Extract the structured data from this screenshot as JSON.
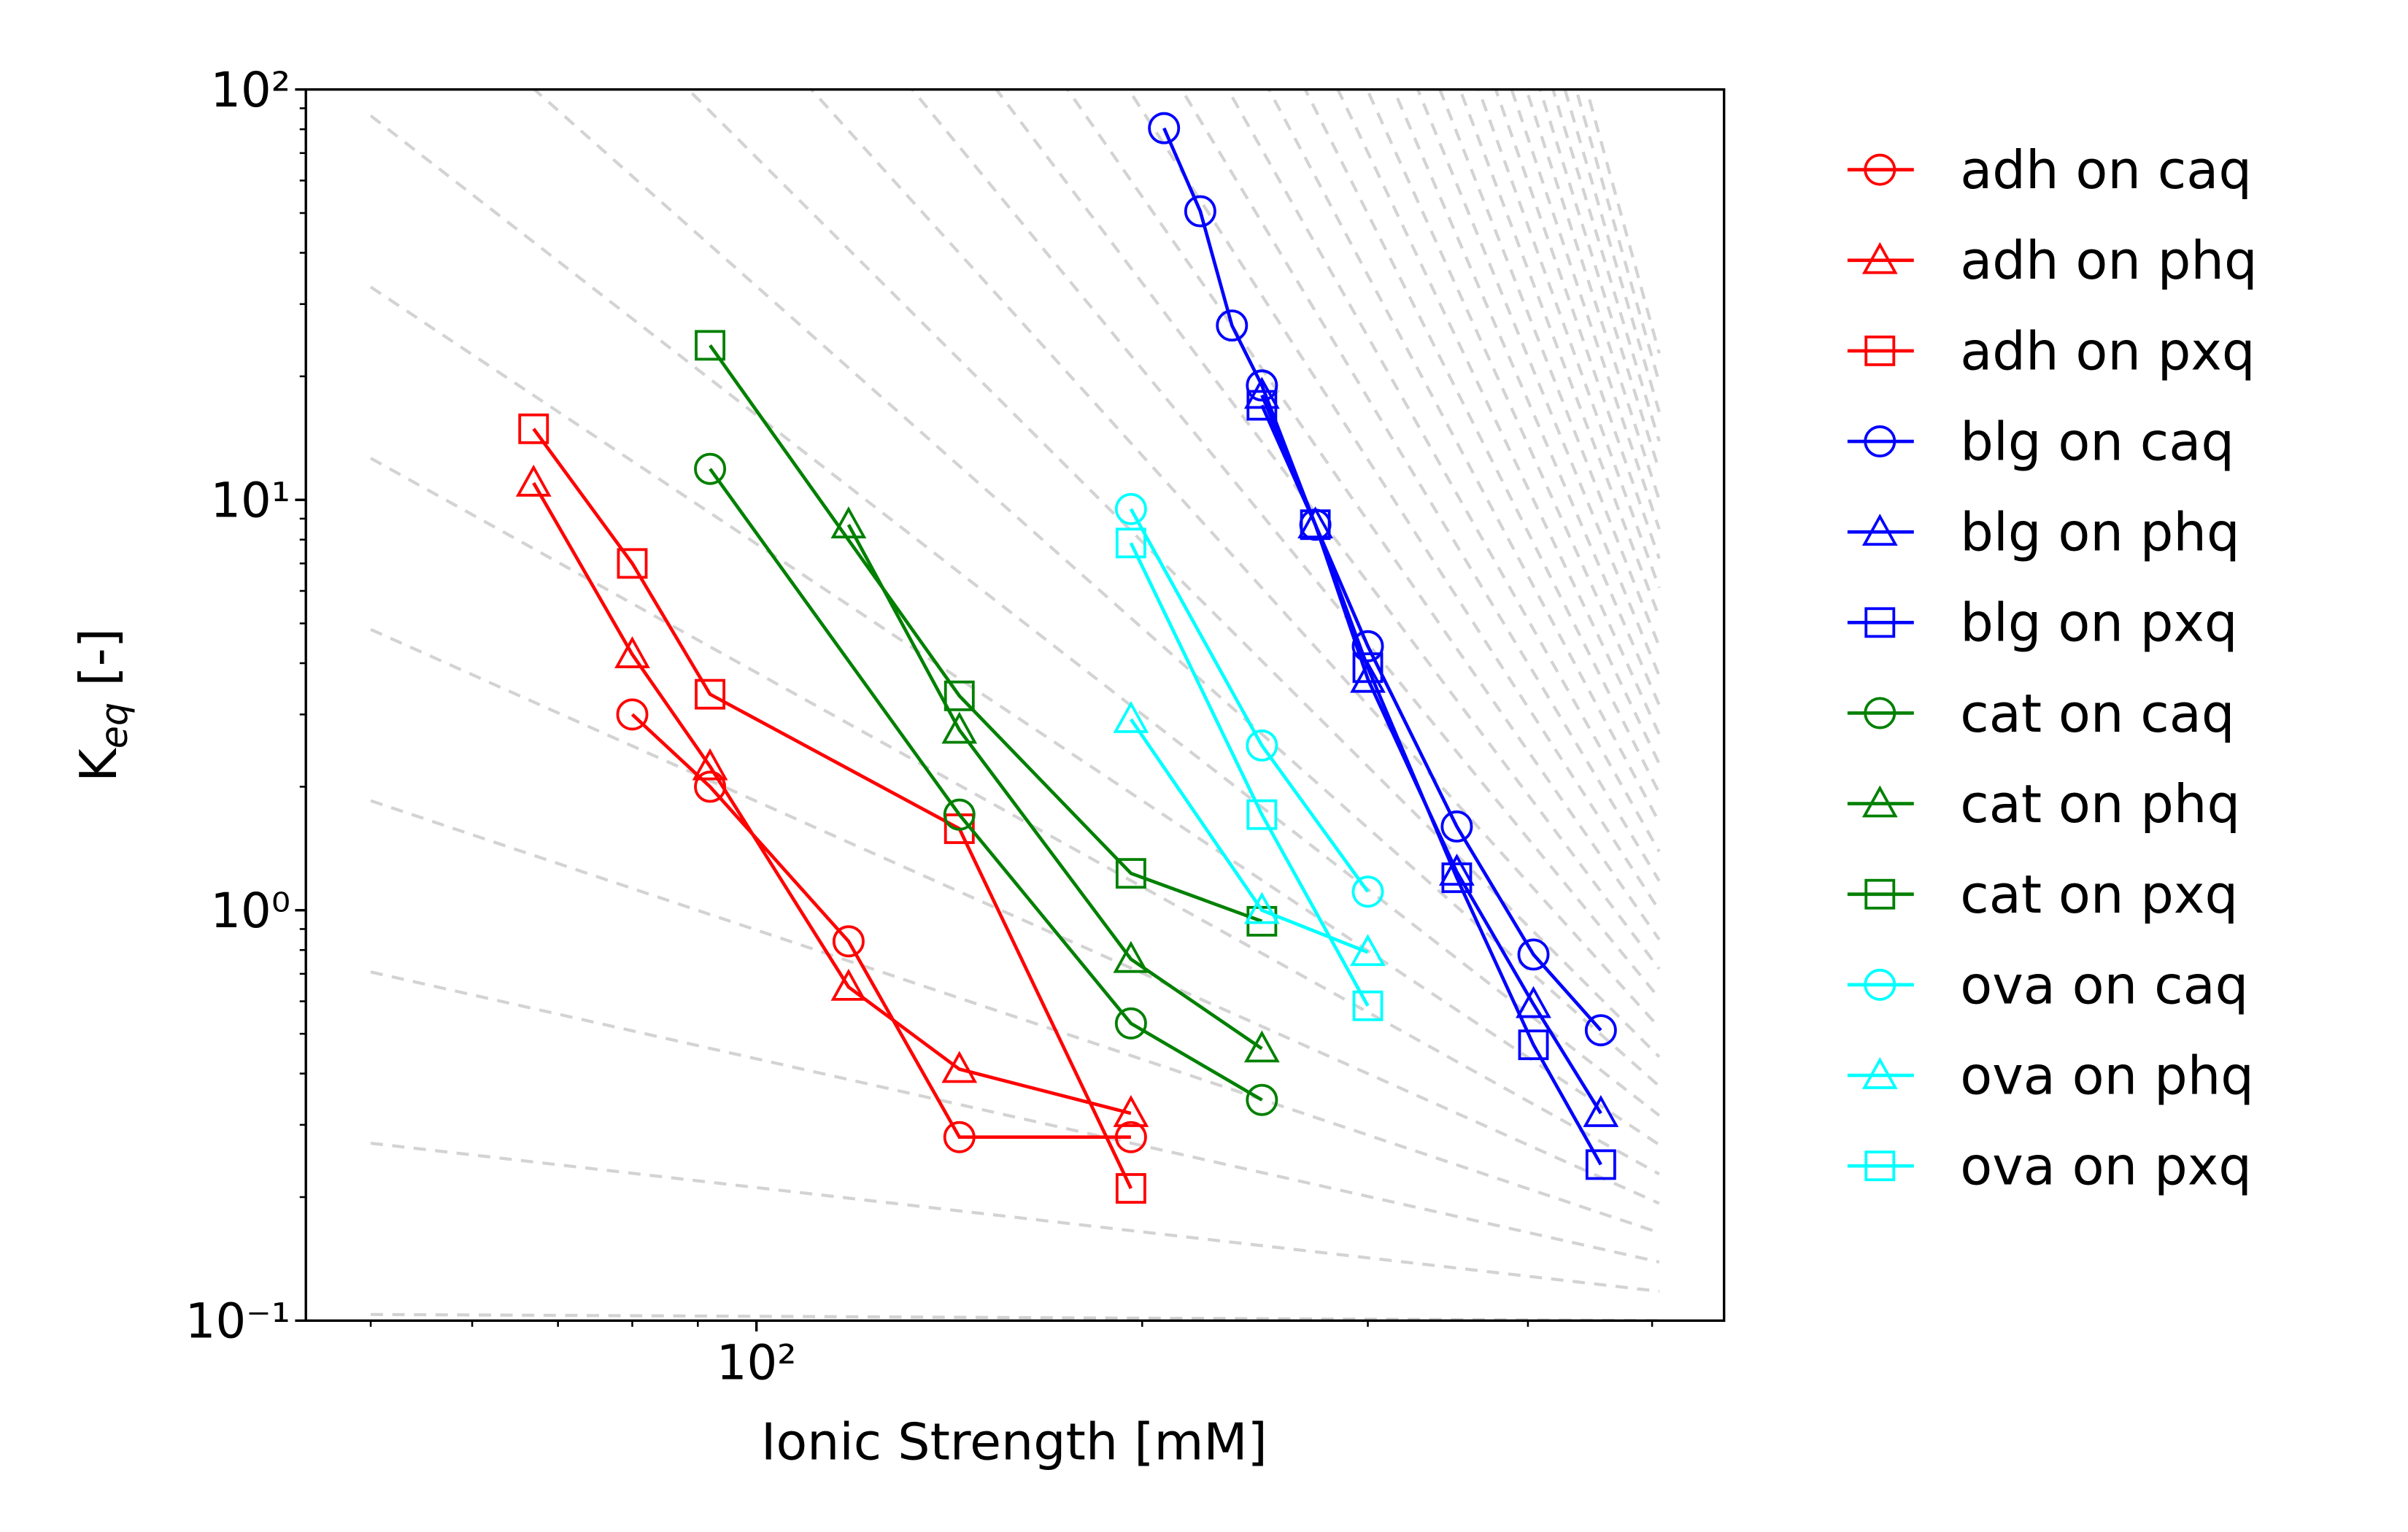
{
  "chart_data": {
    "type": "line",
    "xscale": "log",
    "yscale": "log",
    "xlabel": "Ionic Strength [mM]",
    "ylabel": [
      "K",
      "eq",
      " [-]"
    ],
    "xlim": [
      44.5,
      569
    ],
    "ylim": [
      0.1,
      100
    ],
    "xticks": [
      {
        "value": 100,
        "label": "10²"
      }
    ],
    "xminorticks": [
      50,
      60,
      70,
      80,
      90,
      200,
      300,
      400,
      500
    ],
    "yticks": [
      {
        "value": 0.1,
        "label": "10⁻¹"
      },
      {
        "value": 1,
        "label": "10⁰"
      },
      {
        "value": 10,
        "label": "10¹"
      },
      {
        "value": 100,
        "label": "10²"
      }
    ],
    "yminorticks": [
      0.2,
      0.3,
      0.4,
      0.5,
      0.6,
      0.7,
      0.8,
      0.9,
      2,
      3,
      4,
      5,
      6,
      7,
      8,
      9,
      20,
      30,
      40,
      50,
      60,
      70,
      80,
      90
    ],
    "legend": "outside-right",
    "series": [
      {
        "name": "adh on caq",
        "color": "#ff0000",
        "marker": "circle",
        "x": [
          80,
          92,
          118,
          144,
          196
        ],
        "values": [
          3.0,
          2.0,
          0.84,
          0.28,
          0.28
        ]
      },
      {
        "name": "adh on phq",
        "color": "#ff0000",
        "marker": "triangle",
        "x": [
          67,
          80,
          92,
          118,
          144,
          196
        ],
        "values": [
          11,
          4.2,
          2.24,
          0.65,
          0.41,
          0.32
        ]
      },
      {
        "name": "adh on pxq",
        "color": "#ff0000",
        "marker": "square",
        "x": [
          67,
          80,
          92,
          144,
          196
        ],
        "values": [
          14.9,
          7.0,
          3.36,
          1.58,
          0.21
        ]
      },
      {
        "name": "blg on caq",
        "color": "#0000ff",
        "marker": "circle",
        "x": [
          208,
          222,
          235,
          248,
          273,
          300,
          352,
          404,
          456
        ],
        "values": [
          80.5,
          50.5,
          26.6,
          19,
          8.7,
          4.4,
          1.6,
          0.78,
          0.51
        ]
      },
      {
        "name": "blg on phq",
        "color": "#0000ff",
        "marker": "triangle",
        "x": [
          248,
          273,
          300,
          352,
          404,
          456
        ],
        "values": [
          18,
          8.7,
          3.66,
          1.24,
          0.59,
          0.32
        ]
      },
      {
        "name": "blg on pxq",
        "color": "#0000ff",
        "marker": "square",
        "x": [
          248,
          273,
          300,
          352,
          404,
          456
        ],
        "values": [
          17,
          8.7,
          3.9,
          1.2,
          0.47,
          0.24
        ]
      },
      {
        "name": "cat on caq",
        "color": "#008000",
        "marker": "circle",
        "x": [
          92,
          144,
          196,
          248
        ],
        "values": [
          11.9,
          1.71,
          0.53,
          0.345
        ]
      },
      {
        "name": "cat on phq",
        "color": "#008000",
        "marker": "triangle",
        "x": [
          118,
          144,
          196,
          248
        ],
        "values": [
          8.7,
          2.75,
          0.76,
          0.46
        ]
      },
      {
        "name": "cat on pxq",
        "color": "#008000",
        "marker": "square",
        "x": [
          92,
          144,
          196,
          248
        ],
        "values": [
          23.8,
          3.33,
          1.23,
          0.94
        ]
      },
      {
        "name": "ova on caq",
        "color": "#00ffff",
        "marker": "circle",
        "x": [
          196,
          248,
          300
        ],
        "values": [
          9.5,
          2.52,
          1.11
        ]
      },
      {
        "name": "ova on phq",
        "color": "#00ffff",
        "marker": "triangle",
        "x": [
          196,
          248,
          300
        ],
        "values": [
          2.92,
          1.0,
          0.79
        ]
      },
      {
        "name": "ova on pxq",
        "color": "#00ffff",
        "marker": "square",
        "x": [
          196,
          248,
          300
        ],
        "values": [
          7.85,
          1.71,
          0.585
        ]
      }
    ]
  }
}
